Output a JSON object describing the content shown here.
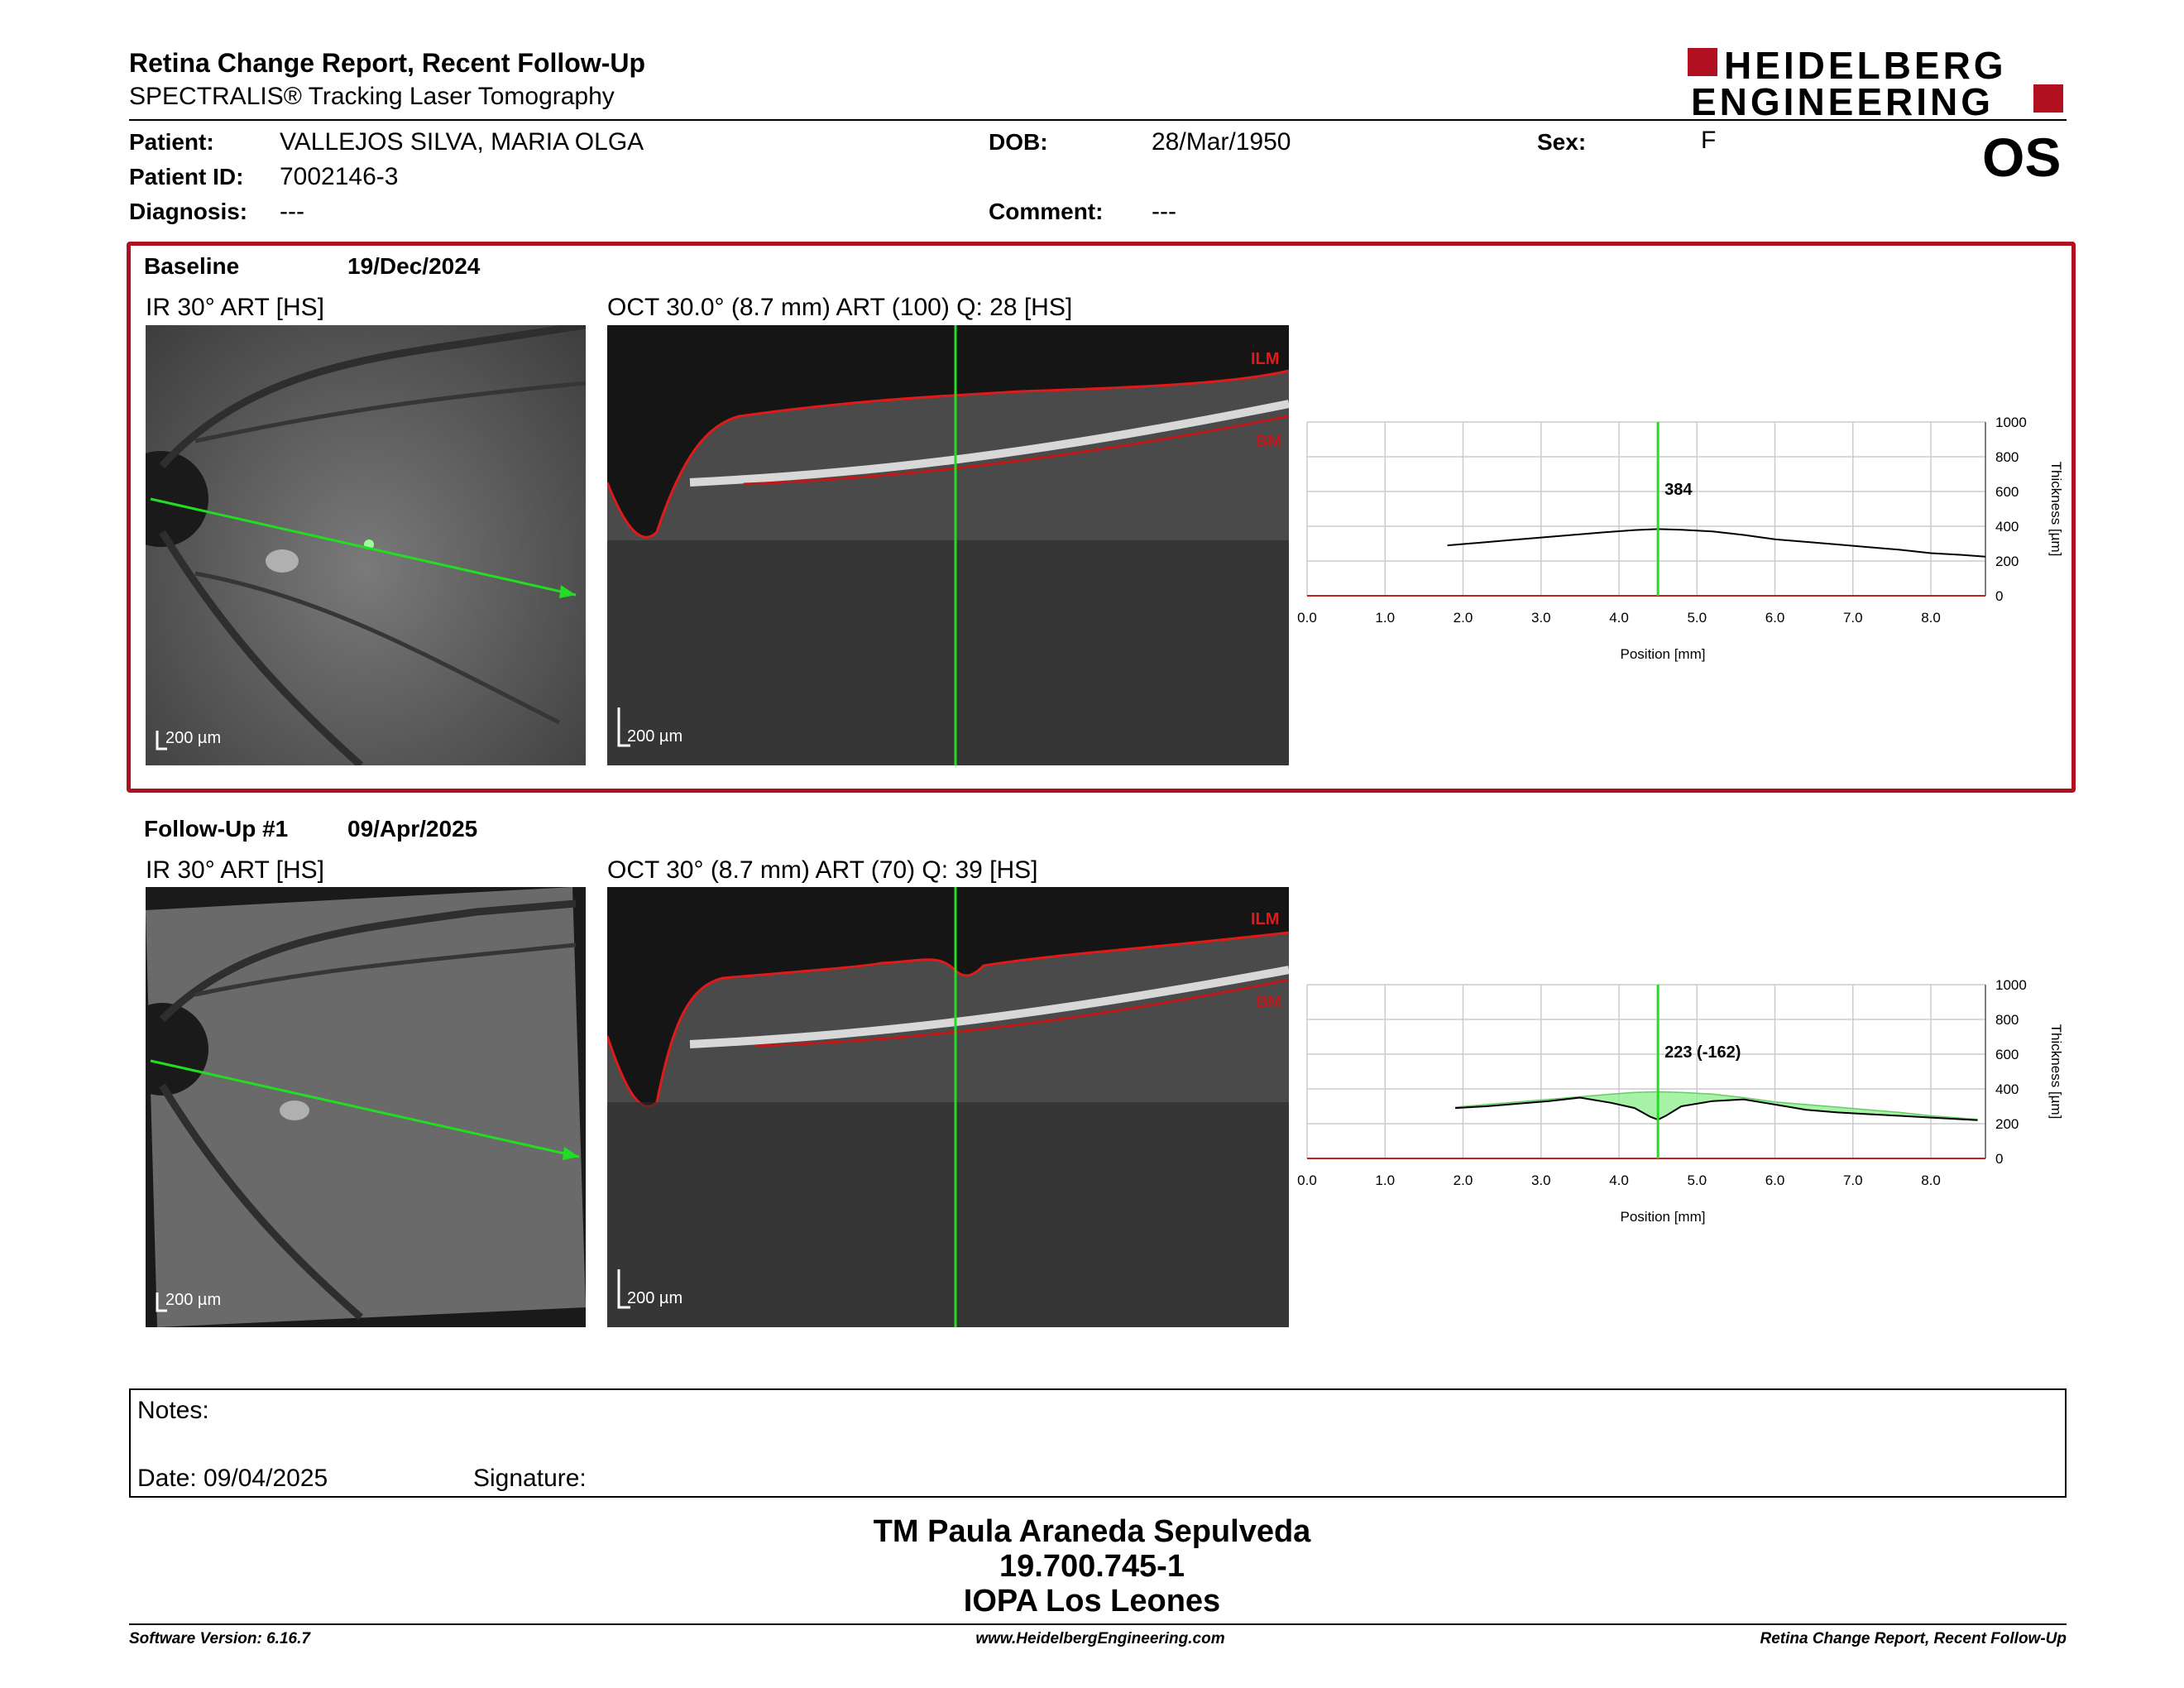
{
  "header": {
    "title": "Retina Change Report, Recent Follow-Up",
    "subtitle": "SPECTRALIS® Tracking Laser Tomography",
    "logo_line1": "HEIDELBERG",
    "logo_line2": "ENGINEERING",
    "eye": "OS"
  },
  "patient": {
    "patient_label": "Patient:",
    "patient_value": "VALLEJOS SILVA, MARIA OLGA",
    "id_label": "Patient ID:",
    "id_value": "7002146-3",
    "diagnosis_label": "Diagnosis:",
    "diagnosis_value": "---",
    "dob_label": "DOB:",
    "dob_value": "28/Mar/1950",
    "comment_label": "Comment:",
    "comment_value": "---",
    "sex_label": "Sex:",
    "sex_value": "F"
  },
  "baseline": {
    "label": "Baseline",
    "date": "19/Dec/2024",
    "ir_title": "IR 30° ART [HS]",
    "oct_title": "OCT 30.0° (8.7 mm) ART (100) Q: 28 [HS]",
    "scale": "200 µm",
    "ilm": "ILM",
    "bm": "BM"
  },
  "followup": {
    "label": "Follow-Up #1",
    "date": "09/Apr/2025",
    "ir_title": "IR 30° ART [HS]",
    "oct_title": "OCT 30° (8.7 mm) ART (70) Q: 39 [HS]",
    "scale": "200 µm",
    "ilm": "ILM",
    "bm": "BM"
  },
  "chart_data": [
    {
      "type": "line",
      "xlabel": "Position [mm]",
      "ylabel": "Thickness [µm]",
      "xlim": [
        0,
        8.7
      ],
      "ylim": [
        0,
        1000
      ],
      "x_ticks": [
        "0.0",
        "1.0",
        "2.0",
        "3.0",
        "4.0",
        "5.0",
        "6.0",
        "7.0",
        "8.0"
      ],
      "y_ticks": [
        "0",
        "200",
        "400",
        "600",
        "800",
        "1000"
      ],
      "marker_x": 4.5,
      "marker_label": "384",
      "series": [
        {
          "x": [
            1.8,
            2.2,
            2.6,
            3.0,
            3.4,
            3.8,
            4.2,
            4.5,
            4.8,
            5.2,
            5.6,
            6.0,
            6.4,
            6.8,
            7.2,
            7.6,
            8.0,
            8.4,
            8.7
          ],
          "values": [
            290,
            305,
            320,
            335,
            350,
            365,
            378,
            384,
            380,
            370,
            350,
            325,
            310,
            295,
            280,
            265,
            245,
            235,
            225
          ]
        }
      ]
    },
    {
      "type": "area",
      "xlabel": "Position [mm]",
      "ylabel": "Thickness [µm]",
      "xlim": [
        0,
        8.7
      ],
      "ylim": [
        0,
        1000
      ],
      "x_ticks": [
        "0.0",
        "1.0",
        "2.0",
        "3.0",
        "4.0",
        "5.0",
        "6.0",
        "7.0",
        "8.0"
      ],
      "y_ticks": [
        "0",
        "200",
        "400",
        "600",
        "800",
        "1000"
      ],
      "marker_x": 4.5,
      "marker_label": "223 (-162)",
      "series": [
        {
          "name": "baseline",
          "x": [
            1.9,
            2.3,
            2.7,
            3.1,
            3.5,
            3.9,
            4.2,
            4.5,
            4.8,
            5.2,
            5.6,
            6.0,
            6.4,
            6.8,
            7.2,
            7.6,
            8.0,
            8.6
          ],
          "values": [
            295,
            310,
            325,
            340,
            355,
            370,
            380,
            384,
            380,
            370,
            350,
            325,
            310,
            295,
            280,
            265,
            245,
            225
          ]
        },
        {
          "name": "follow-up",
          "x": [
            1.9,
            2.3,
            2.7,
            3.1,
            3.5,
            3.9,
            4.2,
            4.4,
            4.5,
            4.6,
            4.8,
            5.2,
            5.6,
            6.0,
            6.4,
            6.8,
            7.2,
            7.6,
            8.0,
            8.6
          ],
          "values": [
            290,
            300,
            315,
            330,
            350,
            320,
            290,
            240,
            223,
            245,
            300,
            330,
            340,
            310,
            280,
            265,
            255,
            245,
            235,
            220
          ]
        }
      ]
    }
  ],
  "notes": {
    "notes_label": "Notes:",
    "date_label": "Date: 09/04/2025",
    "signature_label": "Signature:"
  },
  "signature_block": {
    "line1": "TM Paula Araneda Sepulveda",
    "line2": "19.700.745-1",
    "line3": "IOPA Los Leones"
  },
  "footer": {
    "left": "Software Version: 6.16.7",
    "center": "www.HeidelbergEngineering.com",
    "right": "Retina Change Report, Recent Follow-Up"
  },
  "colors": {
    "accent_red": "#b01020",
    "green": "#22dd22",
    "plot_red": "#c02020",
    "diff_fill": "#88ee88"
  }
}
